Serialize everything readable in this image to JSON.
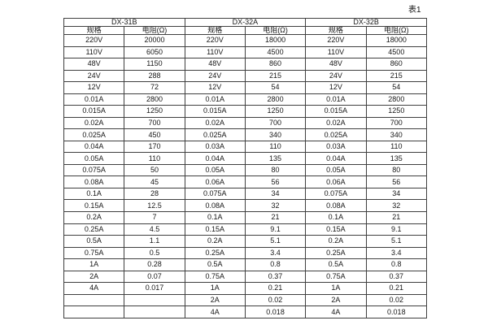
{
  "caption": "表1",
  "table": {
    "groups": [
      {
        "name": "DX-31B",
        "col_headers": [
          "规格",
          "电阻(Ω)"
        ]
      },
      {
        "name": "DX-32A",
        "col_headers": [
          "规格",
          "电阻(Ω)"
        ]
      },
      {
        "name": "DX-32B",
        "col_headers": [
          "规格",
          "电阻(Ω)"
        ]
      }
    ],
    "rows": [
      [
        "220V",
        "20000",
        "220V",
        "18000",
        "220V",
        "18000"
      ],
      [
        "110V",
        "6050",
        "110V",
        "4500",
        "110V",
        "4500"
      ],
      [
        "48V",
        "1150",
        "48V",
        "860",
        "48V",
        "860"
      ],
      [
        "24V",
        "288",
        "24V",
        "215",
        "24V",
        "215"
      ],
      [
        "12V",
        "72",
        "12V",
        "54",
        "12V",
        "54"
      ],
      [
        "0.01A",
        "2800",
        "0.01A",
        "2800",
        "0.01A",
        "2800"
      ],
      [
        "0.015A",
        "1250",
        "0.015A",
        "1250",
        "0.015A",
        "1250"
      ],
      [
        "0.02A",
        "700",
        "0.02A",
        "700",
        "0.02A",
        "700"
      ],
      [
        "0.025A",
        "450",
        "0.025A",
        "340",
        "0.025A",
        "340"
      ],
      [
        "0.04A",
        "170",
        "0.03A",
        "110",
        "0.03A",
        "110"
      ],
      [
        "0.05A",
        "110",
        "0.04A",
        "135",
        "0.04A",
        "135"
      ],
      [
        "0.075A",
        "50",
        "0.05A",
        "80",
        "0.05A",
        "80"
      ],
      [
        "0.08A",
        "45",
        "0.06A",
        "56",
        "0.06A",
        "56"
      ],
      [
        "0.1A",
        "28",
        "0.075A",
        "34",
        "0.075A",
        "34"
      ],
      [
        "0.15A",
        "12.5",
        "0.08A",
        "32",
        "0.08A",
        "32"
      ],
      [
        "0.2A",
        "7",
        "0.1A",
        "21",
        "0.1A",
        "21"
      ],
      [
        "0.25A",
        "4.5",
        "0.15A",
        "9.1",
        "0.15A",
        "9.1"
      ],
      [
        "0.5A",
        "1.1",
        "0.2A",
        "5.1",
        "0.2A",
        "5.1"
      ],
      [
        "0.75A",
        "0.5",
        "0.25A",
        "3.4",
        "0.25A",
        "3.4"
      ],
      [
        "1A",
        "0.28",
        "0.5A",
        "0.8",
        "0.5A",
        "0.8"
      ],
      [
        "2A",
        "0.07",
        "0.75A",
        "0.37",
        "0.75A",
        "0.37"
      ],
      [
        "4A",
        "0.017",
        "1A",
        "0.21",
        "1A",
        "0.21"
      ],
      [
        "",
        "",
        "2A",
        "0.02",
        "2A",
        "0.02"
      ],
      [
        "",
        "",
        "4A",
        "0.018",
        "4A",
        "0.018"
      ]
    ]
  }
}
